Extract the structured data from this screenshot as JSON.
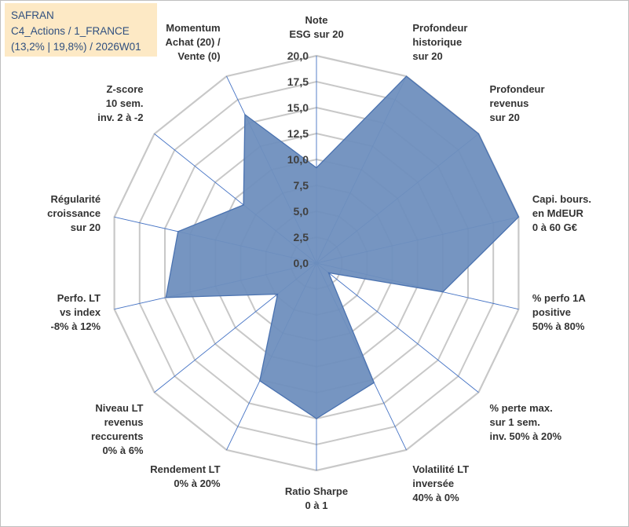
{
  "header": {
    "line1": "SAFRAN",
    "line2": "C4_Actions / 1_FRANCE",
    "line3": "(13,2% | 19,8%) / 2026W01"
  },
  "colors": {
    "fill": "#6f8fbe",
    "outline": "#4a72b0",
    "grid": "#c8c8c8",
    "spoke": "#4472c4",
    "title_bg": "#fde9c5",
    "title_text": "#2f4f7f"
  },
  "chart_data": {
    "type": "radar",
    "r_max": 20,
    "r_min": 0,
    "tick_values": [
      0,
      2.5,
      5,
      7.5,
      10,
      12.5,
      15,
      17.5,
      20
    ],
    "tick_labels": [
      "0,0",
      "2,5",
      "5,0",
      "7,5",
      "10,0",
      "12,5",
      "15,0",
      "17,5",
      "20,0"
    ],
    "axes": [
      {
        "label": [
          "Note",
          "ESG sur 20"
        ],
        "value": 9.2
      },
      {
        "label": [
          "Profondeur",
          "historique",
          "sur 20"
        ],
        "value": 20.0
      },
      {
        "label": [
          "Profondeur",
          "revenus",
          "sur 20"
        ],
        "value": 20.0
      },
      {
        "label": [
          "Capi. bours.",
          "en MdEUR",
          "0 à 60 G€"
        ],
        "value": 20.0
      },
      {
        "label": [
          "% perfo 1A",
          "positive",
          "50% à 80%"
        ],
        "value": 12.5
      },
      {
        "label": [
          "% perte max.",
          "sur 1 sem.",
          "inv. 50% à 20%"
        ],
        "value": 1.5
      },
      {
        "label": [
          "Volatilité LT",
          "inversée",
          "40% à 0%"
        ],
        "value": 12.8
      },
      {
        "label": [
          "Ratio Sharpe",
          "0 à 1"
        ],
        "value": 15.0
      },
      {
        "label": [
          "Rendement LT",
          "0% à 20%"
        ],
        "value": 12.6
      },
      {
        "label": [
          "Niveau LT",
          "revenus",
          "reccurents",
          "0% à 6%"
        ],
        "value": 4.8
      },
      {
        "label": [
          "Perfo. LT",
          "vs index",
          "-8% à 12%"
        ],
        "value": 14.9
      },
      {
        "label": [
          "Régularité",
          "croissance",
          "sur 20"
        ],
        "value": 13.7
      },
      {
        "label": [
          "Z-score",
          "10 sem.",
          "inv. 2 à -2"
        ],
        "value": 9.0
      },
      {
        "label": [
          "Momentum",
          "Achat (20) /",
          "Vente (0)"
        ],
        "value": 15.9
      }
    ]
  }
}
